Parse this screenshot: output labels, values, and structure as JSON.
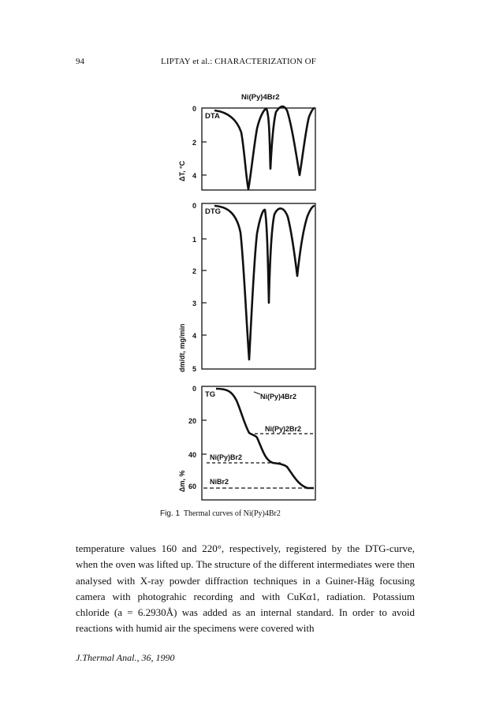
{
  "header": {
    "page_number": "94",
    "running_title": "LIPTAY et al.: CHARACTERIZATION OF"
  },
  "figure": {
    "compound_label": "Ni(Py)4Br2",
    "dta": {
      "panel_label": "DTA",
      "axis_label": "ΔT, °C",
      "ticks": [
        "0",
        "2",
        "4"
      ]
    },
    "dtg": {
      "panel_label": "DTG",
      "axis_label": "dm/dt, mg/min",
      "ticks": [
        "0",
        "1",
        "2",
        "3",
        "4",
        "5"
      ]
    },
    "tg": {
      "panel_label": "TG",
      "axis_label": "Δm, %",
      "ticks": [
        "0",
        "20",
        "40",
        "60"
      ],
      "annotations": [
        "Ni(Py)4Br2",
        "Ni(Py)2Br2",
        "Ni(Py)Br2",
        "NiBr2"
      ]
    },
    "caption_label": "Fig. 1",
    "caption_text": "Thermal curves of Ni(Py)4Br2"
  },
  "body": {
    "paragraph": "temperature values 160 and 220°, respectively, registered by the DTG-curve, when the oven was lifted up. The structure of the different intermediates were then analysed with X-ray powder diffraction techniques in a Guiner-Häg focusing camera with photograhic recording and with CuKα1, radiation. Potassium chloride (a = 6.2930Å) was added as an internal standard. In order to avoid reactions with humid air the specimens were covered with"
  },
  "footer": {
    "journal": "J.Thermal Anal., 36, 1990"
  }
}
